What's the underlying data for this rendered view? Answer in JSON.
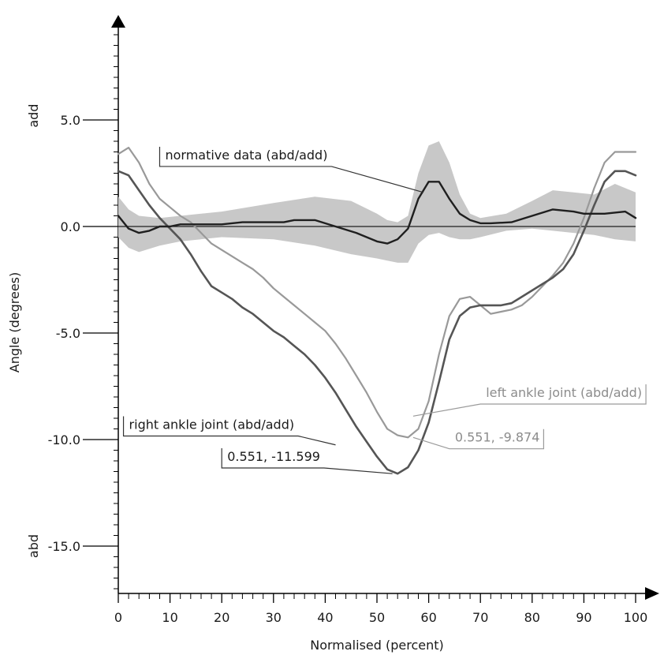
{
  "chart_data": {
    "type": "line",
    "title": "",
    "xlabel": "Normalised (percent)",
    "ylabel": "Angle (degrees)",
    "y_top_side_label": "add",
    "y_bottom_side_label": "abd",
    "xlim": [
      0,
      100
    ],
    "ylim": [
      -17,
      10
    ],
    "x_ticks": [
      0,
      10,
      20,
      30,
      40,
      50,
      60,
      70,
      80,
      90,
      100
    ],
    "x_tick_labels": [
      "0",
      "10",
      "20",
      "30",
      "40",
      "50",
      "60",
      "70",
      "80",
      "90",
      "100"
    ],
    "y_ticks": [
      5,
      0,
      -5,
      -10,
      -15
    ],
    "y_tick_labels": [
      "5.0",
      "0.0",
      "-5.0",
      "-10.0",
      "-15.0"
    ],
    "grid": false,
    "zero_line": true,
    "colors": {
      "band": "#c8c8c8",
      "normative": "#1f1f1f",
      "right": "#555555",
      "left": "#999999",
      "axis": "#000000"
    },
    "normative_band": {
      "name": "normative data (abd/add)",
      "x": [
        0,
        2,
        4,
        8,
        12,
        20,
        30,
        38,
        45,
        50,
        52,
        54,
        56,
        58,
        60,
        62,
        64,
        66,
        68,
        70,
        75,
        80,
        84,
        88,
        92,
        96,
        100
      ],
      "upper": [
        1.4,
        0.8,
        0.5,
        0.4,
        0.5,
        0.7,
        1.1,
        1.4,
        1.2,
        0.6,
        0.3,
        0.2,
        0.5,
        2.5,
        3.8,
        4.0,
        3.0,
        1.5,
        0.6,
        0.4,
        0.6,
        1.2,
        1.7,
        1.6,
        1.5,
        2.0,
        1.6
      ],
      "lower": [
        -0.5,
        -1.0,
        -1.2,
        -0.9,
        -0.7,
        -0.5,
        -0.6,
        -0.9,
        -1.3,
        -1.5,
        -1.6,
        -1.7,
        -1.7,
        -0.8,
        -0.4,
        -0.3,
        -0.5,
        -0.6,
        -0.6,
        -0.5,
        -0.2,
        -0.1,
        -0.2,
        -0.3,
        -0.4,
        -0.6,
        -0.7
      ]
    },
    "series": [
      {
        "name": "normative data (abd/add)",
        "x": [
          0,
          2,
          4,
          6,
          8,
          10,
          12,
          16,
          20,
          24,
          28,
          32,
          34,
          36,
          38,
          42,
          46,
          48,
          50,
          52,
          54,
          56,
          58,
          60,
          62,
          64,
          66,
          68,
          70,
          72,
          76,
          80,
          84,
          88,
          90,
          94,
          98,
          100
        ],
        "values": [
          0.5,
          -0.1,
          -0.3,
          -0.2,
          0.0,
          0.0,
          0.1,
          0.1,
          0.1,
          0.2,
          0.2,
          0.2,
          0.3,
          0.3,
          0.3,
          0.0,
          -0.3,
          -0.5,
          -0.7,
          -0.8,
          -0.6,
          -0.1,
          1.3,
          2.1,
          2.1,
          1.3,
          0.6,
          0.3,
          0.15,
          0.15,
          0.2,
          0.5,
          0.8,
          0.7,
          0.6,
          0.6,
          0.7,
          0.4
        ]
      },
      {
        "name": "right ankle joint (abd/add)",
        "x": [
          0,
          2,
          4,
          6,
          8,
          10,
          12,
          14,
          16,
          18,
          20,
          22,
          24,
          26,
          28,
          30,
          32,
          34,
          36,
          38,
          40,
          42,
          44,
          46,
          48,
          50,
          52,
          54,
          56,
          58,
          60,
          62,
          64,
          66,
          68,
          70,
          72,
          74,
          76,
          78,
          80,
          82,
          84,
          86,
          88,
          90,
          92,
          94,
          96,
          98,
          100
        ],
        "values": [
          2.6,
          2.4,
          1.7,
          1.0,
          0.4,
          -0.1,
          -0.6,
          -1.3,
          -2.1,
          -2.8,
          -3.1,
          -3.4,
          -3.8,
          -4.1,
          -4.5,
          -4.9,
          -5.2,
          -5.6,
          -6.0,
          -6.5,
          -7.1,
          -7.8,
          -8.6,
          -9.4,
          -10.1,
          -10.8,
          -11.4,
          -11.6,
          -11.3,
          -10.5,
          -9.2,
          -7.3,
          -5.3,
          -4.2,
          -3.8,
          -3.7,
          -3.7,
          -3.7,
          -3.6,
          -3.3,
          -3.0,
          -2.7,
          -2.4,
          -2.0,
          -1.3,
          -0.2,
          1.0,
          2.1,
          2.6,
          2.6,
          2.4
        ]
      },
      {
        "name": "left ankle joint (abd/add)",
        "x": [
          0,
          2,
          4,
          6,
          8,
          10,
          12,
          14,
          16,
          18,
          20,
          22,
          24,
          26,
          28,
          30,
          32,
          34,
          36,
          38,
          40,
          42,
          44,
          46,
          48,
          50,
          52,
          54,
          56,
          58,
          60,
          62,
          64,
          66,
          68,
          70,
          72,
          74,
          76,
          78,
          80,
          82,
          84,
          86,
          88,
          90,
          92,
          94,
          96,
          98,
          100
        ],
        "values": [
          3.4,
          3.7,
          3.0,
          2.0,
          1.3,
          0.9,
          0.5,
          0.2,
          -0.3,
          -0.8,
          -1.1,
          -1.4,
          -1.7,
          -2.0,
          -2.4,
          -2.9,
          -3.3,
          -3.7,
          -4.1,
          -4.5,
          -4.9,
          -5.5,
          -6.2,
          -7.0,
          -7.8,
          -8.7,
          -9.5,
          -9.8,
          -9.9,
          -9.5,
          -8.2,
          -6.0,
          -4.2,
          -3.4,
          -3.3,
          -3.7,
          -4.1,
          -4.0,
          -3.9,
          -3.7,
          -3.3,
          -2.8,
          -2.3,
          -1.7,
          -0.8,
          0.4,
          1.8,
          3.0,
          3.5,
          3.5,
          3.5
        ]
      }
    ],
    "annotations": [
      {
        "name": "normative-label",
        "text": "normative data (abd/add)",
        "style": "dark",
        "x": 8,
        "y": 3.15,
        "target_x": 59,
        "target_y": 1.6
      },
      {
        "name": "right-series-label",
        "text": "right ankle joint (abd/add)",
        "style": "dark",
        "x": 1,
        "y": -9.5,
        "target_x": 42,
        "target_y": -10.25
      },
      {
        "name": "right-value-label",
        "text": "0.551, -11.599",
        "style": "dark",
        "x": 20,
        "y": -11.0,
        "target_x": 53,
        "target_y": -11.6
      },
      {
        "name": "left-series-label",
        "text": "left ankle joint (abd/add)",
        "style": "light",
        "x": 70,
        "y": -8.0,
        "target_x": 57,
        "target_y": -8.9
      },
      {
        "name": "left-value-label",
        "text": "0.551, -9.874",
        "style": "light",
        "x": 64,
        "y": -10.1,
        "target_x": 57,
        "target_y": -9.9
      }
    ]
  }
}
